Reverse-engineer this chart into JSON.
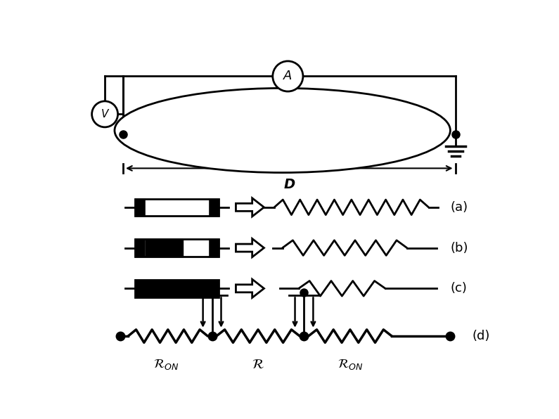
{
  "bg_color": "#ffffff",
  "line_color": "#000000",
  "fig_width": 7.95,
  "fig_height": 5.96,
  "dpi": 100,
  "label_a": "(a)",
  "label_b": "(b)",
  "label_c": "(c)",
  "label_d": "(d)",
  "label_D": "D",
  "label_V": "V",
  "label_A": "A"
}
